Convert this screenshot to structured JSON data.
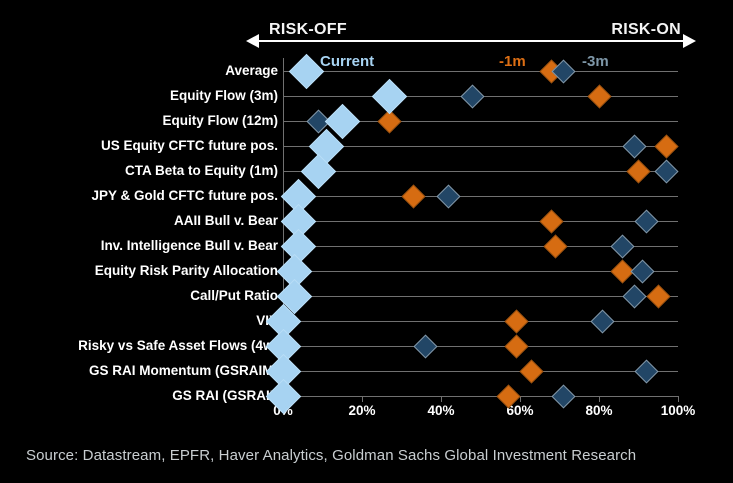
{
  "header": {
    "risk_off": "RISK-OFF",
    "risk_on": "RISK-ON"
  },
  "legend": {
    "current": "Current",
    "m1": "-1m",
    "m3": "-3m"
  },
  "colors": {
    "current_fill": "#A7D3F2",
    "current_edge": "#B9DDF6",
    "m1_fill": "#D66C12",
    "m1_edge": "#9C5310",
    "m3_fill": "#224666",
    "m3_edge": "#8598A7",
    "m1_text": "#DE6F14",
    "m3_text": "#7E97A8",
    "grid": "#707070",
    "axis_text": "#FFFFFF",
    "arrow": "#FDFDFD",
    "background": "#000000",
    "source_text": "#C9CED1"
  },
  "source": "Source: Datastream, EPFR, Haver Analytics, Goldman Sachs Global Investment Research",
  "chart_data": {
    "type": "scatter",
    "subtype": "horizontal-dot-plot-diamonds",
    "title": "",
    "xlabel": "",
    "ylabel": "",
    "xlim": [
      0,
      100
    ],
    "x_tick_labels": [
      "0%",
      "20%",
      "40%",
      "60%",
      "80%",
      "100%"
    ],
    "x_tick_values": [
      0,
      20,
      40,
      60,
      80,
      100
    ],
    "grid": "horizontal category lines",
    "legend_position": "top",
    "axis_annotations": {
      "left": "RISK-OFF",
      "right": "RISK-ON"
    },
    "categories": [
      "Average",
      "Equity Flow (3m)",
      "Equity Flow (12m)",
      "US Equity CFTC future pos.",
      "CTA Beta to Equity (1m)",
      "JPY & Gold CFTC future pos.",
      "AAII Bull v. Bear",
      "Inv. Intelligence Bull v. Bear",
      "Equity Risk Parity Allocation",
      "Call/Put Ratio",
      "VIX",
      "Risky vs Safe Asset Flows (4w)",
      "GS RAI Momentum (GSRAIM)",
      "GS RAI (GSRAII)"
    ],
    "series": [
      {
        "name": "Current",
        "unit": "%",
        "values": [
          6,
          27,
          15,
          11,
          9,
          4,
          4,
          4,
          3,
          3,
          0,
          0,
          0,
          0
        ]
      },
      {
        "name": "-1m",
        "unit": "%",
        "values": [
          68,
          80,
          27,
          97,
          90,
          33,
          68,
          69,
          86,
          95,
          59,
          59,
          63,
          57
        ]
      },
      {
        "name": "-3m",
        "unit": "%",
        "values": [
          71,
          48,
          9,
          89,
          97,
          42,
          92,
          86,
          91,
          89,
          81,
          36,
          92,
          71
        ]
      }
    ]
  }
}
